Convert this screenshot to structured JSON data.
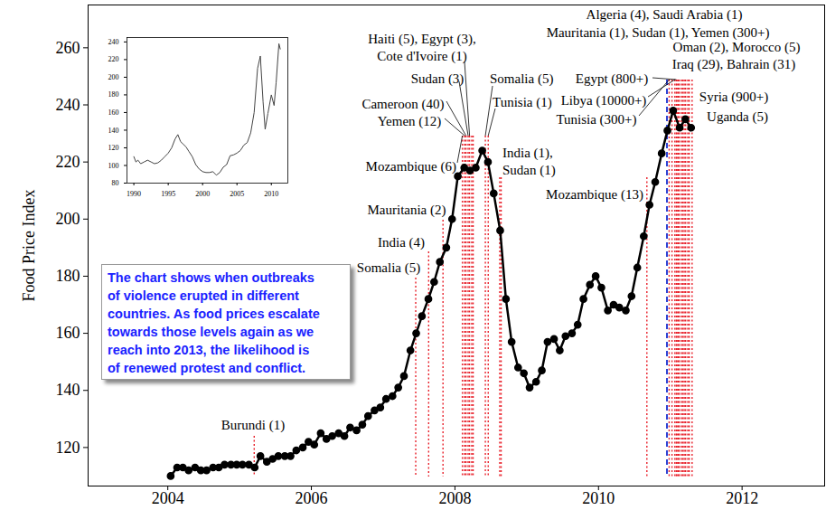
{
  "chart_data": [
    {
      "type": "line",
      "y_label": "Food Price Index",
      "color": "#000000",
      "marker": "circle",
      "xlim": [
        2002.89,
        2013.15
      ],
      "xticks": [
        2004,
        2006,
        2008,
        2010,
        2012
      ],
      "ylim": [
        106.5,
        275
      ],
      "yticks": [
        120,
        140,
        160,
        180,
        200,
        220,
        240,
        260
      ],
      "x": [
        2004.04,
        2004.13,
        2004.21,
        2004.29,
        2004.38,
        2004.46,
        2004.54,
        2004.63,
        2004.71,
        2004.79,
        2004.88,
        2004.96,
        2005.04,
        2005.13,
        2005.21,
        2005.29,
        2005.38,
        2005.46,
        2005.54,
        2005.63,
        2005.71,
        2005.79,
        2005.88,
        2005.96,
        2006.04,
        2006.13,
        2006.21,
        2006.29,
        2006.38,
        2006.46,
        2006.54,
        2006.63,
        2006.71,
        2006.79,
        2006.88,
        2006.96,
        2007.04,
        2007.13,
        2007.21,
        2007.29,
        2007.38,
        2007.46,
        2007.54,
        2007.63,
        2007.71,
        2007.79,
        2007.88,
        2007.96,
        2008.04,
        2008.13,
        2008.21,
        2008.29,
        2008.38,
        2008.46,
        2008.54,
        2008.63,
        2008.71,
        2008.79,
        2008.88,
        2008.96,
        2009.04,
        2009.13,
        2009.21,
        2009.29,
        2009.38,
        2009.46,
        2009.54,
        2009.63,
        2009.71,
        2009.79,
        2009.88,
        2009.96,
        2010.04,
        2010.13,
        2010.21,
        2010.29,
        2010.38,
        2010.46,
        2010.54,
        2010.63,
        2010.71,
        2010.79,
        2010.88,
        2010.96,
        2011.04,
        2011.13,
        2011.21,
        2011.29
      ],
      "values": [
        110,
        113,
        113,
        112,
        113,
        112,
        112,
        113,
        113,
        114,
        114,
        114,
        114,
        114,
        113,
        117,
        115,
        116,
        117,
        117,
        117,
        119,
        120,
        122,
        121,
        125,
        123,
        124,
        125,
        124,
        127,
        126,
        128,
        131,
        133,
        134,
        137,
        138,
        141,
        145,
        154,
        160,
        166,
        172,
        178,
        185,
        190,
        200,
        215,
        218,
        217,
        218,
        224,
        220,
        209,
        196,
        172,
        157,
        148,
        146,
        141,
        143,
        147,
        157,
        158,
        154,
        159,
        160,
        163,
        172,
        177,
        180,
        176,
        168,
        170,
        169,
        168,
        173,
        183,
        194,
        205,
        213,
        223,
        231,
        238,
        232,
        235,
        232
      ],
      "annotations": [
        {
          "text": [
            "Burundi (1)"
          ],
          "x": [
            2005.21
          ],
          "color": "#e8202a",
          "line_style": "dotted"
        },
        {
          "text": [
            "Somalia (5)"
          ],
          "x": [
            2007.46
          ],
          "color": "#e8202a",
          "line_style": "dotted"
        },
        {
          "text": [
            "India (4)"
          ],
          "x": [
            2007.64
          ],
          "color": "#e8202a",
          "line_style": "dotted"
        },
        {
          "text": [
            "Mauritania (2)"
          ],
          "x": [
            2007.84
          ],
          "color": "#e8202a",
          "line_style": "dotted"
        },
        {
          "text": [
            "Mozambique (6)"
          ],
          "x": [
            2008.11
          ],
          "color": "#e8202a",
          "line_style": "dotted"
        },
        {
          "text": [
            "Yemen (12)"
          ],
          "x": [
            2008.14
          ],
          "color": "#e8202a",
          "line_style": "dotted"
        },
        {
          "text": [
            "Cameroon (40)"
          ],
          "x": [
            2008.16
          ],
          "color": "#e8202a",
          "line_style": "dotted"
        },
        {
          "text": [
            "Sudan (3)"
          ],
          "x": [
            2008.19
          ],
          "color": "#e8202a",
          "line_style": "dotted"
        },
        {
          "text": [
            "Haiti (5), Egypt (3),",
            "Cote d'Ivoire (1)"
          ],
          "x": [
            2008.21,
            2008.24,
            2008.26
          ],
          "color": "#e8202a",
          "line_style": "dotted"
        },
        {
          "text": [
            "Somalia (5)"
          ],
          "x": [
            2008.43
          ],
          "color": "#e8202a",
          "line_style": "dotted"
        },
        {
          "text": [
            "Tunisia (1)"
          ],
          "x": [
            2008.47
          ],
          "color": "#e8202a",
          "line_style": "dotted"
        },
        {
          "text": [
            "India (1),",
            "Sudan (1)"
          ],
          "x": [
            2008.63,
            2008.65
          ],
          "color": "#e8202a",
          "line_style": "dotted"
        },
        {
          "text": [
            "Mozambique (13)"
          ],
          "x": [
            2010.68
          ],
          "color": "#e8202a",
          "line_style": "dotted"
        },
        {
          "x": [
            2010.96
          ],
          "color": "#2a3fd4",
          "line_style": "dashed"
        },
        {
          "text": [
            "Tunisia (300+)"
          ],
          "x": [
            2010.99
          ],
          "color": "#e8202a",
          "line_style": "dotted"
        },
        {
          "text": [
            "Libya (10000+)"
          ],
          "x": [
            2011.07
          ],
          "color": "#e8202a",
          "line_style": "dotted"
        },
        {
          "text": [
            "Egypt (800+)"
          ],
          "x": [
            2011.09
          ],
          "color": "#e8202a",
          "line_style": "dotted"
        },
        {
          "text": [
            "Algeria (4), Saudi Arabia (1)"
          ],
          "x": [
            2011.03,
            2011.16
          ],
          "color": "#e8202a",
          "line_style": "dotted"
        },
        {
          "text": [
            "Mauritania (1), Sudan (1), Yemen (300+)"
          ],
          "x": [
            2011.1,
            2011.12,
            2011.13
          ],
          "color": "#e8202a",
          "line_style": "dotted"
        },
        {
          "text": [
            "Oman (2), Morocco (5)"
          ],
          "x": [
            2011.18,
            2011.2
          ],
          "color": "#e8202a",
          "line_style": "dotted"
        },
        {
          "text": [
            "Iraq (29), Bahrain (31)"
          ],
          "x": [
            2011.22,
            2011.25
          ],
          "color": "#e8202a",
          "line_style": "dotted"
        },
        {
          "text": [
            "Syria (900+)"
          ],
          "x": [
            2011.27
          ],
          "color": "#e8202a",
          "line_style": "dotted"
        },
        {
          "text": [
            "Uganda (5)"
          ],
          "x": [
            2011.31
          ],
          "color": "#e8202a",
          "line_style": "dotted"
        }
      ],
      "note": [
        "The chart shows when outbreaks",
        "of violence erupted in different",
        "countries. As food prices escalate",
        "towards those levels again as we",
        "reach into 2013, the likelihood is",
        "of renewed protest and conflict."
      ]
    },
    {
      "type": "line",
      "color": "#444444",
      "xlim": [
        1989,
        2012.4
      ],
      "xticks": [
        1990,
        1995,
        2000,
        2005,
        2010
      ],
      "ylim": [
        80,
        245
      ],
      "yticks": [
        80,
        100,
        120,
        140,
        160,
        180,
        200,
        220,
        240
      ],
      "x": [
        1990.0,
        1990.3,
        1990.6,
        1991.0,
        1991.5,
        1992.0,
        1992.5,
        1993.0,
        1993.5,
        1994.0,
        1994.5,
        1995.0,
        1995.5,
        1996.0,
        1996.4,
        1996.8,
        1997.2,
        1997.6,
        1998.0,
        1998.5,
        1999.0,
        1999.5,
        2000.0,
        2000.5,
        2001.0,
        2001.5,
        2002.0,
        2002.5,
        2003.0,
        2003.5,
        2004.0,
        2004.5,
        2005.0,
        2005.5,
        2006.0,
        2006.5,
        2007.0,
        2007.5,
        2008.0,
        2008.4,
        2008.8,
        2009.1,
        2009.5,
        2010.0,
        2010.4,
        2010.7,
        2011.1,
        2011.3
      ],
      "values": [
        110,
        104,
        106,
        102,
        104,
        106,
        104,
        102,
        103,
        106,
        110,
        114,
        120,
        130,
        135,
        127,
        124,
        121,
        116,
        110,
        101,
        96,
        93,
        92,
        92,
        93,
        89,
        92,
        98,
        101,
        111,
        112,
        114,
        117,
        123,
        126,
        137,
        160,
        210,
        224,
        172,
        141,
        159,
        180,
        168,
        194,
        238,
        232
      ]
    }
  ]
}
